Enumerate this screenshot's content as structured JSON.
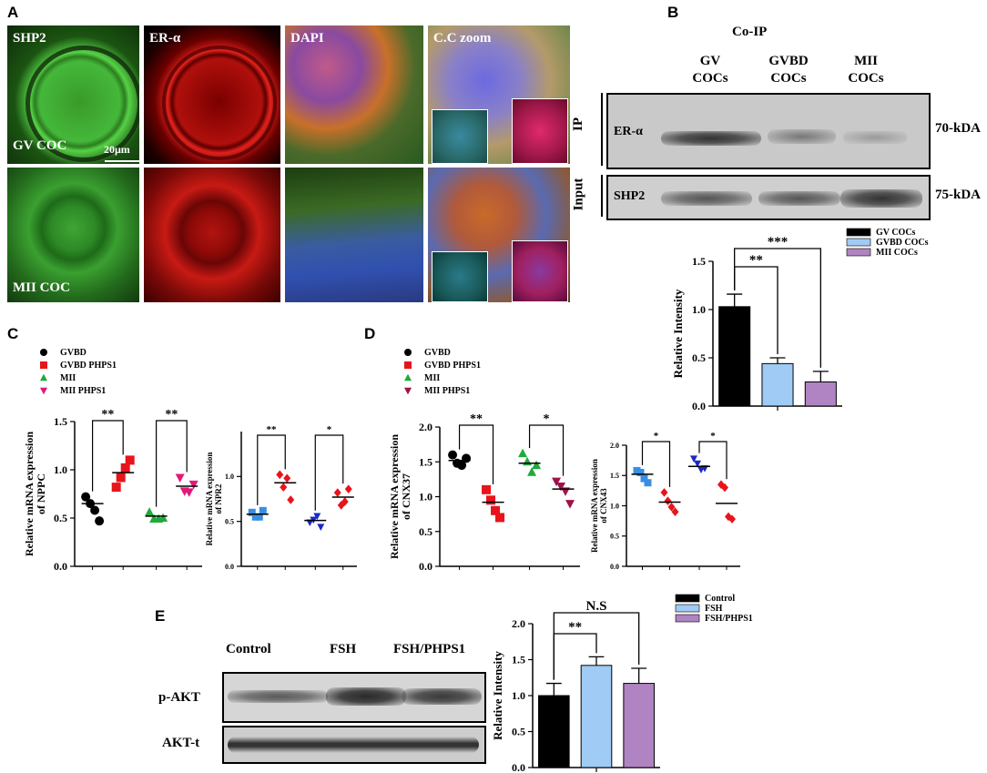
{
  "panels": {
    "A": "A",
    "B": "B",
    "C": "C",
    "D": "D",
    "E": "E"
  },
  "panel_a": {
    "channels": [
      "SHP2",
      "ER-α",
      "DAPI",
      "C.C zoom"
    ],
    "rows": [
      "GV COC",
      "MII COC"
    ],
    "scale_bar": "20μm",
    "colors": {
      "green": "#2fa830",
      "red": "#d8171b",
      "blue": "#3742c6"
    }
  },
  "panel_b": {
    "title": "Co-IP",
    "columns": [
      {
        "line1": "GV",
        "line2": "COCs"
      },
      {
        "line1": "GVBD",
        "line2": "COCs"
      },
      {
        "line1": "MII",
        "line2": "COCs"
      }
    ],
    "ip_label": "IP",
    "input_label": "Input",
    "band1": "ER-α",
    "band2": "SHP2",
    "kda1": "70-kDA",
    "kda2": "75-kDA"
  },
  "panel_e_blot": {
    "columns": [
      "Control",
      "FSH",
      "FSH/PHPS1"
    ],
    "band1": "p-AKT",
    "band2": "AKT-t"
  },
  "chart_data": [
    {
      "id": "B-bar",
      "type": "bar",
      "categories": [
        "GV COCs",
        "GVBD COCs",
        "MII COCs"
      ],
      "values": [
        1.03,
        0.44,
        0.25
      ],
      "errors": [
        0.13,
        0.06,
        0.11
      ],
      "colors": [
        "#000000",
        "#9fcbf4",
        "#b084c2"
      ],
      "ylabel": "Relative Intensity",
      "ylim": [
        0,
        1.5
      ],
      "yticks": [
        "0.0",
        "0.5",
        "1.0",
        "1.5"
      ],
      "significance": [
        "**",
        "***"
      ],
      "legend_placement": "top-right"
    },
    {
      "id": "C-left",
      "type": "scatter",
      "groups": [
        "GVBD",
        "GVBD PHPS1",
        "MII",
        "MII PHPS1"
      ],
      "group_colors": [
        "#000000",
        "#e8141c",
        "#1faa3c",
        "#e01a7a"
      ],
      "points": [
        [
          0.72,
          0.65,
          0.58,
          0.47
        ],
        [
          0.82,
          0.92,
          1.02,
          1.1
        ],
        [
          0.56,
          0.49,
          0.49,
          0.5
        ],
        [
          0.92,
          0.78,
          0.77,
          0.85
        ]
      ],
      "means": [
        0.65,
        0.97,
        0.52,
        0.83
      ],
      "ylabel_line1": "Relative mRNA expression",
      "ylabel_line2": "of NPPC",
      "ylim": [
        0,
        1.5
      ],
      "yticks": [
        "0.0",
        "0.5",
        "1.0",
        "1.5"
      ],
      "significance": [
        "**",
        "**"
      ]
    },
    {
      "id": "C-right",
      "type": "scatter",
      "group_colors": [
        "#3a8ee0",
        "#e8141c",
        "#1a28c8",
        "#e8141c"
      ],
      "points": [
        [
          0.6,
          0.55,
          0.55,
          0.62
        ],
        [
          1.02,
          0.88,
          0.98,
          0.74
        ],
        [
          0.49,
          0.52,
          0.56,
          0.44
        ],
        [
          0.82,
          0.68,
          0.72,
          0.86
        ]
      ],
      "means": [
        0.58,
        0.93,
        0.51,
        0.77
      ],
      "ylabel_line1": "Relative mRNA expression",
      "ylabel_line2": "of NPR2",
      "ylim": [
        0,
        1.5
      ],
      "yticks": [
        "0.0",
        "0.5",
        "1.0"
      ],
      "significance": [
        "**",
        "*"
      ]
    },
    {
      "id": "D-left",
      "type": "scatter",
      "groups": [
        "GVBD",
        "GVBD PHPS1",
        "MII",
        "MII PHPS1"
      ],
      "group_colors": [
        "#000000",
        "#e8141c",
        "#1faa3c",
        "#a0124a"
      ],
      "points": [
        [
          1.6,
          1.48,
          1.45,
          1.55
        ],
        [
          1.1,
          0.95,
          0.8,
          0.7
        ],
        [
          1.62,
          1.5,
          1.35,
          1.45
        ],
        [
          1.22,
          1.15,
          1.08,
          0.9
        ]
      ],
      "means": [
        1.52,
        0.92,
        1.48,
        1.11
      ],
      "ylabel_line1": "Relative mRNA expression",
      "ylabel_line2": "of CNX37",
      "ylim": [
        0,
        2.0
      ],
      "yticks": [
        "0.0",
        "0.5",
        "1.0",
        "1.5",
        "2.0"
      ],
      "significance": [
        "**",
        "*"
      ]
    },
    {
      "id": "D-right",
      "type": "scatter",
      "group_colors": [
        "#3a8ee0",
        "#e8141c",
        "#1a28c8",
        "#e8141c"
      ],
      "points": [
        [
          1.58,
          1.55,
          1.45,
          1.38
        ],
        [
          1.22,
          1.08,
          0.98,
          0.9
        ],
        [
          1.78,
          1.7,
          1.6,
          1.62
        ],
        [
          1.35,
          1.3,
          0.82,
          0.78
        ]
      ],
      "means": [
        1.52,
        1.06,
        1.65,
        1.04
      ],
      "ylabel_line1": "Relative mRNA expression",
      "ylabel_line2": "of CNX43",
      "ylim": [
        0,
        2.0
      ],
      "yticks": [
        "0.0",
        "0.5",
        "1.0",
        "1.5",
        "2.0"
      ],
      "significance": [
        "*",
        "*"
      ]
    },
    {
      "id": "E-bar",
      "type": "bar",
      "categories": [
        "Control",
        "FSH",
        "FSH/PHPS1"
      ],
      "values": [
        1.0,
        1.42,
        1.17
      ],
      "errors": [
        0.17,
        0.12,
        0.21
      ],
      "colors": [
        "#000000",
        "#9fcbf4",
        "#b084c2"
      ],
      "ylabel": "Relative Intensity",
      "ylim": [
        0,
        2.0
      ],
      "yticks": [
        "0.0",
        "0.5",
        "1.0",
        "1.5",
        "2.0"
      ],
      "significance": [
        "**",
        "N.S"
      ],
      "legend_placement": "top-right"
    }
  ]
}
